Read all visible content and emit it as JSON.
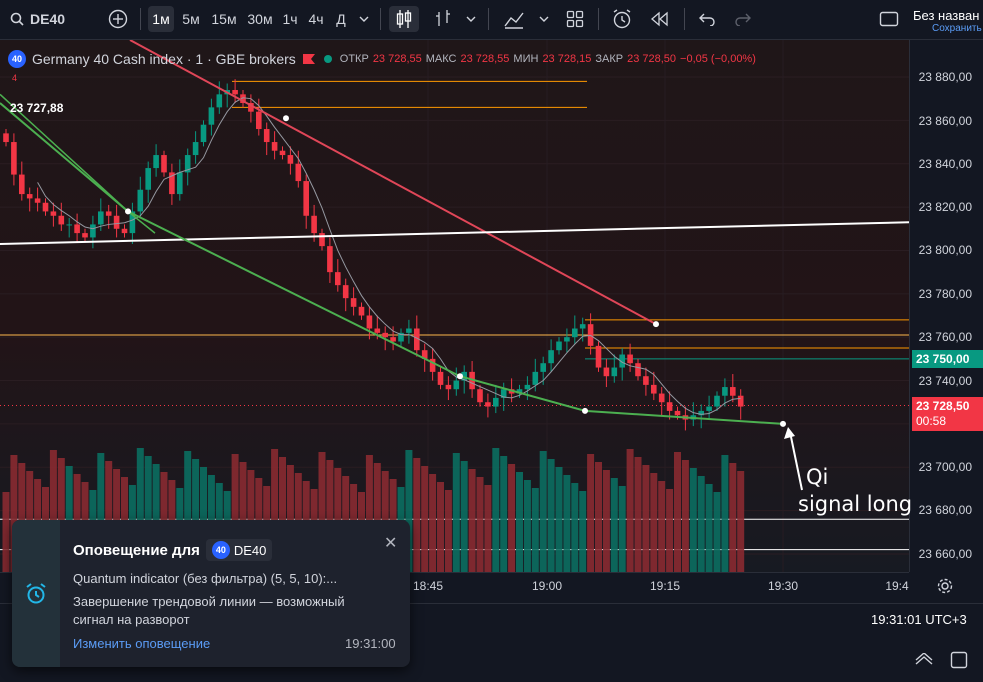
{
  "toolbar": {
    "symbol": "DE40",
    "intervals": [
      "1м",
      "5м",
      "15м",
      "30м",
      "1ч",
      "4ч",
      "Д"
    ],
    "active_interval": "1м",
    "layout_name": "Без назван",
    "save_label": "Сохранить"
  },
  "legend": {
    "instrument": "Germany 40 Cash index · 1 · GBE brokers",
    "open_label": "ОТКР",
    "open_value": "23 728,55",
    "high_label": "МАКС",
    "high_value": "23 728,55",
    "low_label": "МИН",
    "low_value": "23 728,15",
    "close_label": "ЗАКР",
    "close_value": "23 728,50",
    "change": "−0,05 (−0,00%)",
    "left_price": "23 727,88",
    "left_marker": "4",
    "badge": "40"
  },
  "price_scale": {
    "ticks": [
      "23 880,00",
      "23 860,00",
      "23 840,00",
      "23 820,00",
      "23 800,00",
      "23 780,00",
      "23 760,00",
      "23 740,00",
      "23 700,00",
      "23 680,00",
      "23 660,00"
    ],
    "line_label": "23 750,00",
    "line_label_color": "#089981",
    "current_price": "23 728,50",
    "countdown": "00:58",
    "current_color": "#f23645"
  },
  "time_axis": {
    "labels": [
      "18:45",
      "19:00",
      "19:15",
      "19:30",
      "19:4"
    ]
  },
  "status": {
    "clock": "19:31:01 UTC+3"
  },
  "notification": {
    "title": "Оповещение для",
    "symbol": "DE40",
    "badge": "40",
    "line1": "Quantum indicator (без фильтра) (5, 5, 10):...",
    "line2": "Завершение трендовой линии — возможный сигнал на разворот",
    "edit_link": "Изменить оповещение",
    "time": "19:31:00"
  },
  "annotation": {
    "line1": "Qi",
    "line2": "signal long"
  },
  "colors": {
    "up": "#089981",
    "down": "#f23645",
    "background": "#131722"
  },
  "chart_data": {
    "type": "candlestick",
    "title": "Germany 40 Cash index · 1 · GBE brokers",
    "interval": "1 minute",
    "ylim": [
      23650,
      23890
    ],
    "x_ticks": [
      "18:45",
      "19:00",
      "19:15",
      "19:30"
    ],
    "close_series": [
      23850,
      23835,
      23826,
      23824,
      23822,
      23818,
      23816,
      23812,
      23812,
      23808,
      23806,
      23812,
      23818,
      23816,
      23810,
      23808,
      23818,
      23828,
      23838,
      23844,
      23836,
      23826,
      23836,
      23844,
      23850,
      23858,
      23866,
      23872,
      23874,
      23872,
      23868,
      23864,
      23856,
      23850,
      23846,
      23844,
      23840,
      23832,
      23816,
      23808,
      23802,
      23790,
      23784,
      23778,
      23774,
      23770,
      23764,
      23762,
      23760,
      23758,
      23762,
      23764,
      23754,
      23750,
      23744,
      23738,
      23736,
      23740,
      23744,
      23736,
      23730,
      23728,
      23732,
      23736,
      23734,
      23736,
      23738,
      23744,
      23748,
      23754,
      23758,
      23760,
      23764,
      23766,
      23756,
      23746,
      23742,
      23746,
      23752,
      23748,
      23742,
      23738,
      23734,
      23730,
      23726,
      23724,
      23722,
      23724,
      23726,
      23728,
      23733,
      23737,
      23733,
      23728
    ],
    "horizontal_levels": [
      23878,
      23866,
      23761,
      23755,
      23750,
      23729
    ],
    "trendlines": [
      {
        "color": "#f23645",
        "from_value": 23905,
        "to_value": 23766
      },
      {
        "color": "#4caf50",
        "from_value": 23868,
        "to_value": 23720
      },
      {
        "color": "#ffffff",
        "from_value": 23803,
        "to_value": 23813
      }
    ],
    "last_price": 23728.5,
    "green_level": 23750.0
  }
}
